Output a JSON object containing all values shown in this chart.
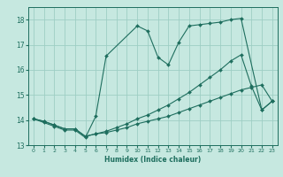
{
  "xlabel": "Humidex (Indice chaleur)",
  "xlim": [
    -0.5,
    23.5
  ],
  "ylim": [
    13,
    18.5
  ],
  "yticks": [
    13,
    14,
    15,
    16,
    17,
    18
  ],
  "xticks": [
    0,
    1,
    2,
    3,
    4,
    5,
    6,
    7,
    8,
    9,
    10,
    11,
    12,
    13,
    14,
    15,
    16,
    17,
    18,
    19,
    20,
    21,
    22,
    23
  ],
  "bg_color": "#c6e8e0",
  "grid_color": "#9ecec4",
  "line_color": "#1e6e5e",
  "lines": [
    {
      "x": [
        0,
        1,
        2,
        3,
        4,
        5,
        6,
        7,
        10,
        11,
        12,
        13,
        14,
        15,
        16,
        17,
        18,
        19,
        20,
        22,
        23
      ],
      "y": [
        14.05,
        13.9,
        13.75,
        13.6,
        13.6,
        13.3,
        14.15,
        16.55,
        17.75,
        17.55,
        16.5,
        16.2,
        17.1,
        17.75,
        17.8,
        17.85,
        17.9,
        18.0,
        18.05,
        14.4,
        14.75
      ]
    },
    {
      "x": [
        0,
        1,
        2,
        3,
        4,
        5,
        6,
        7,
        8,
        9,
        10,
        11,
        12,
        13,
        14,
        15,
        16,
        17,
        18,
        19,
        20,
        21,
        22,
        23
      ],
      "y": [
        14.05,
        13.95,
        13.8,
        13.65,
        13.65,
        13.35,
        13.45,
        13.5,
        13.6,
        13.7,
        13.85,
        13.95,
        14.05,
        14.15,
        14.3,
        14.45,
        14.6,
        14.75,
        14.9,
        15.05,
        15.2,
        15.3,
        15.4,
        14.75
      ]
    },
    {
      "x": [
        0,
        1,
        2,
        3,
        4,
        5,
        6,
        7,
        8,
        9,
        10,
        11,
        12,
        13,
        14,
        15,
        16,
        17,
        18,
        19,
        20,
        21,
        22,
        23
      ],
      "y": [
        14.05,
        13.95,
        13.8,
        13.65,
        13.65,
        13.35,
        13.45,
        13.55,
        13.7,
        13.85,
        14.05,
        14.2,
        14.4,
        14.6,
        14.85,
        15.1,
        15.4,
        15.7,
        16.0,
        16.35,
        16.6,
        15.35,
        14.4,
        14.75
      ]
    }
  ]
}
